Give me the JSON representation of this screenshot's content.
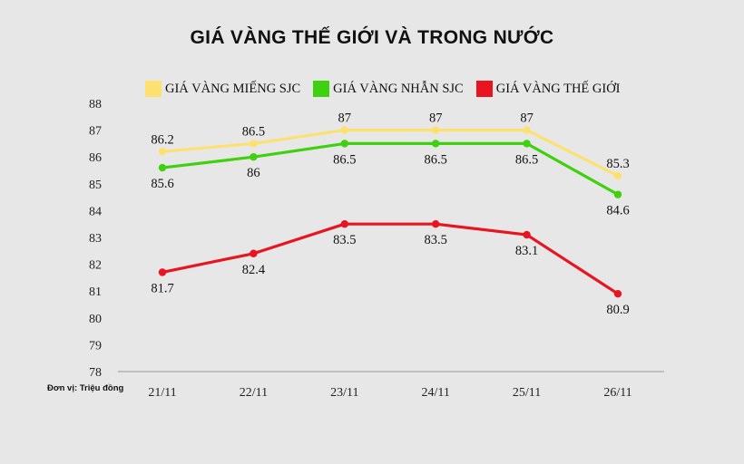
{
  "chart_data": {
    "type": "line",
    "title": "GIÁ VÀNG THẾ GIỚI VÀ TRONG NƯỚC",
    "unit_note": "Đơn vị: Triệu đồng",
    "categories": [
      "21/11",
      "22/11",
      "23/11",
      "24/11",
      "25/11",
      "26/11"
    ],
    "ylim": [
      78,
      88
    ],
    "yticks": [
      78,
      79,
      80,
      81,
      82,
      83,
      84,
      85,
      86,
      87,
      88
    ],
    "grid": "none",
    "legend_position": "top",
    "series": [
      {
        "name": "GIÁ VÀNG MIẾNG SJC",
        "color": "#fde170",
        "values": [
          86.2,
          86.5,
          87,
          87,
          87,
          85.3
        ],
        "label_side": [
          "above",
          "above",
          "above",
          "above",
          "above",
          "above"
        ]
      },
      {
        "name": "GIÁ VÀNG NHẪN SJC",
        "color": "#3fd010",
        "values": [
          85.6,
          86,
          86.5,
          86.5,
          86.5,
          84.6
        ],
        "label_side": [
          "below",
          "below",
          "below",
          "below",
          "below",
          "below"
        ]
      },
      {
        "name": "GIÁ VÀNG THẾ GIỚI",
        "color": "#e8141f",
        "values": [
          81.7,
          82.4,
          83.5,
          83.5,
          83.1,
          80.9
        ],
        "label_side": [
          "below",
          "below",
          "below",
          "below",
          "below",
          "below"
        ]
      }
    ]
  }
}
